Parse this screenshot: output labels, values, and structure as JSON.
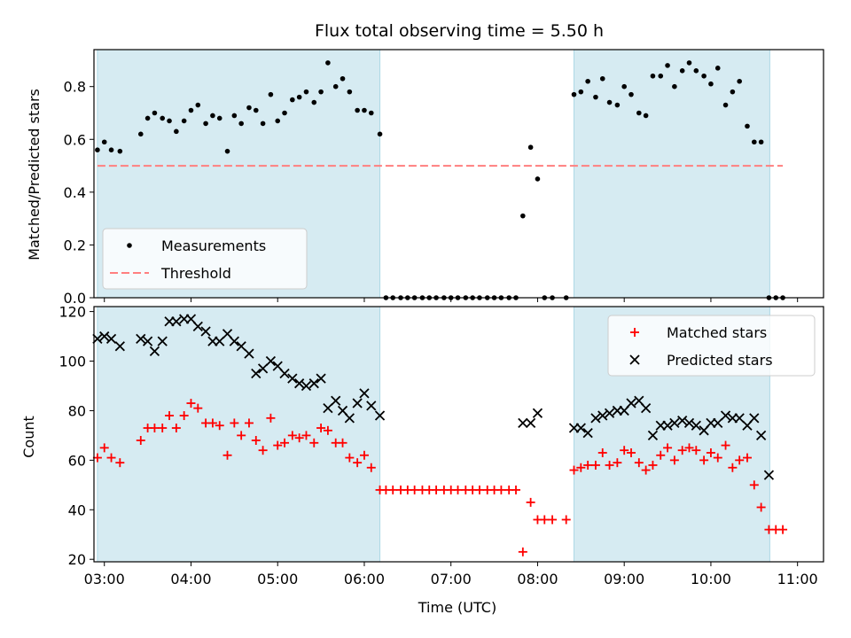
{
  "chart_data": [
    {
      "type": "scatter",
      "title": "Flux total observing time = 5.50 h",
      "ylabel": "Matched/Predicted stars",
      "xlabel": "",
      "xlim": [
        2.88,
        11.3
      ],
      "ylim": [
        0.0,
        0.94
      ],
      "xticks": [
        3,
        4,
        5,
        6,
        7,
        8,
        9,
        10,
        11
      ],
      "xticklabels": [],
      "yticks": [
        0.0,
        0.2,
        0.4,
        0.6,
        0.8
      ],
      "yticklabels": [
        "0.0",
        "0.2",
        "0.4",
        "0.6",
        "0.8"
      ],
      "grid": false,
      "legend_placement": "lower-left",
      "observing_windows": [
        [
          2.92,
          6.18
        ],
        [
          8.42,
          10.68
        ]
      ],
      "window_color": "#add8e6",
      "series": [
        {
          "name": "Measurements",
          "marker": "dot",
          "color": "#000000",
          "x": [
            2.92,
            3.0,
            3.08,
            3.18,
            3.42,
            3.5,
            3.58,
            3.67,
            3.75,
            3.83,
            3.92,
            4.0,
            4.08,
            4.17,
            4.25,
            4.33,
            4.42,
            4.5,
            4.58,
            4.67,
            4.75,
            4.83,
            4.92,
            5.0,
            5.08,
            5.17,
            5.25,
            5.33,
            5.42,
            5.5,
            5.58,
            5.67,
            5.75,
            5.83,
            5.92,
            6.0,
            6.08,
            6.18,
            6.25,
            6.33,
            6.42,
            6.5,
            6.58,
            6.67,
            6.75,
            6.83,
            6.92,
            7.0,
            7.08,
            7.17,
            7.25,
            7.33,
            7.42,
            7.5,
            7.58,
            7.67,
            7.75,
            7.83,
            7.92,
            8.0,
            8.08,
            8.17,
            8.33,
            8.42,
            8.5,
            8.58,
            8.67,
            8.75,
            8.83,
            8.92,
            9.0,
            9.08,
            9.17,
            9.25,
            9.33,
            9.42,
            9.5,
            9.58,
            9.67,
            9.75,
            9.83,
            9.92,
            10.0,
            10.08,
            10.17,
            10.25,
            10.33,
            10.42,
            10.5,
            10.58,
            10.67,
            10.75,
            10.83
          ],
          "y": [
            0.56,
            0.59,
            0.56,
            0.555,
            0.62,
            0.68,
            0.7,
            0.68,
            0.67,
            0.63,
            0.67,
            0.71,
            0.73,
            0.66,
            0.69,
            0.68,
            0.555,
            0.69,
            0.66,
            0.72,
            0.71,
            0.66,
            0.77,
            0.67,
            0.7,
            0.75,
            0.76,
            0.78,
            0.74,
            0.78,
            0.89,
            0.8,
            0.83,
            0.78,
            0.71,
            0.71,
            0.7,
            0.62,
            0.0,
            0.0,
            0.0,
            0.0,
            0.0,
            0.0,
            0.0,
            0.0,
            0.0,
            0.0,
            0.0,
            0.0,
            0.0,
            0.0,
            0.0,
            0.0,
            0.0,
            0.0,
            0.0,
            0.31,
            0.57,
            0.45,
            0.0,
            0.0,
            0.0,
            0.77,
            0.78,
            0.82,
            0.76,
            0.83,
            0.74,
            0.73,
            0.8,
            0.77,
            0.7,
            0.69,
            0.84,
            0.84,
            0.88,
            0.8,
            0.86,
            0.89,
            0.86,
            0.84,
            0.81,
            0.87,
            0.73,
            0.78,
            0.82,
            0.65,
            0.59,
            0.59,
            0.0,
            0.0,
            0.0
          ]
        },
        {
          "name": "Threshold",
          "marker": "dashed-line",
          "color": "#ff7f7f",
          "x": [
            2.92,
            10.83
          ],
          "y": [
            0.5,
            0.5
          ]
        }
      ]
    },
    {
      "type": "scatter",
      "title": "",
      "ylabel": "Count",
      "xlabel": "Time (UTC)",
      "xlim": [
        2.88,
        11.3
      ],
      "ylim": [
        19,
        122
      ],
      "xticks": [
        3,
        4,
        5,
        6,
        7,
        8,
        9,
        10,
        11
      ],
      "xticklabels": [
        "03:00",
        "04:00",
        "05:00",
        "06:00",
        "07:00",
        "08:00",
        "09:00",
        "10:00",
        "11:00"
      ],
      "yticks": [
        20,
        40,
        60,
        80,
        100,
        120
      ],
      "yticklabels": [
        "20",
        "40",
        "60",
        "80",
        "100",
        "120"
      ],
      "grid": false,
      "legend_placement": "upper-right",
      "observing_windows": [
        [
          2.92,
          6.18
        ],
        [
          8.42,
          10.68
        ]
      ],
      "window_color": "#add8e6",
      "series": [
        {
          "name": "Matched stars",
          "marker": "plus",
          "color": "#ff0000",
          "x": [
            2.92,
            3.0,
            3.08,
            3.18,
            3.42,
            3.5,
            3.58,
            3.67,
            3.75,
            3.83,
            3.92,
            4.0,
            4.08,
            4.17,
            4.25,
            4.33,
            4.42,
            4.5,
            4.58,
            4.67,
            4.75,
            4.83,
            4.92,
            5.0,
            5.08,
            5.17,
            5.25,
            5.33,
            5.42,
            5.5,
            5.58,
            5.67,
            5.75,
            5.83,
            5.92,
            6.0,
            6.08,
            6.18,
            6.25,
            6.33,
            6.42,
            6.5,
            6.58,
            6.67,
            6.75,
            6.83,
            6.92,
            7.0,
            7.08,
            7.17,
            7.25,
            7.33,
            7.42,
            7.5,
            7.58,
            7.67,
            7.75,
            7.83,
            7.92,
            8.0,
            8.08,
            8.17,
            8.33,
            8.42,
            8.5,
            8.58,
            8.67,
            8.75,
            8.83,
            8.92,
            9.0,
            9.08,
            9.17,
            9.25,
            9.33,
            9.42,
            9.5,
            9.58,
            9.67,
            9.75,
            9.83,
            9.92,
            10.0,
            10.08,
            10.17,
            10.25,
            10.33,
            10.42,
            10.5,
            10.58,
            10.67,
            10.75,
            10.83
          ],
          "y": [
            61,
            65,
            61,
            59,
            68,
            73,
            73,
            73,
            78,
            73,
            78,
            83,
            81,
            75,
            75,
            74,
            62,
            75,
            70,
            75,
            68,
            64,
            77,
            66,
            67,
            70,
            69,
            70,
            67,
            73,
            72,
            67,
            67,
            61,
            59,
            62,
            57,
            48,
            48,
            48,
            48,
            48,
            48,
            48,
            48,
            48,
            48,
            48,
            48,
            48,
            48,
            48,
            48,
            48,
            48,
            48,
            48,
            23,
            43,
            36,
            36,
            36,
            36,
            56,
            57,
            58,
            58,
            63,
            58,
            59,
            64,
            63,
            59,
            56,
            58,
            62,
            65,
            60,
            64,
            65,
            64,
            60,
            63,
            61,
            66,
            57,
            60,
            61,
            50,
            41,
            32,
            32,
            32
          ]
        },
        {
          "name": "Predicted stars",
          "marker": "x",
          "color": "#000000",
          "x": [
            2.92,
            3.0,
            3.08,
            3.18,
            3.42,
            3.5,
            3.58,
            3.67,
            3.75,
            3.83,
            3.92,
            4.0,
            4.08,
            4.17,
            4.25,
            4.33,
            4.42,
            4.5,
            4.58,
            4.67,
            4.75,
            4.83,
            4.92,
            5.0,
            5.08,
            5.17,
            5.25,
            5.33,
            5.42,
            5.5,
            5.58,
            5.67,
            5.75,
            5.83,
            5.92,
            6.0,
            6.08,
            6.18,
            7.83,
            7.92,
            8.0,
            8.42,
            8.5,
            8.58,
            8.67,
            8.75,
            8.83,
            8.92,
            9.0,
            9.08,
            9.17,
            9.25,
            9.33,
            9.42,
            9.5,
            9.58,
            9.67,
            9.75,
            9.83,
            9.92,
            10.0,
            10.08,
            10.17,
            10.25,
            10.33,
            10.42,
            10.5,
            10.58,
            10.67
          ],
          "y": [
            109,
            110,
            109,
            106,
            109,
            108,
            104,
            108,
            116,
            116,
            117,
            117,
            114,
            112,
            108,
            108,
            111,
            108,
            106,
            103,
            95,
            97,
            100,
            98,
            95,
            93,
            91,
            90,
            91,
            93,
            81,
            84,
            80,
            77,
            83,
            87,
            82,
            78,
            75,
            75,
            79,
            73,
            73,
            71,
            77,
            78,
            79,
            80,
            80,
            83,
            84,
            81,
            70,
            74,
            74,
            75,
            76,
            75,
            74,
            72,
            75,
            75,
            78,
            77,
            77,
            74,
            77,
            70,
            54
          ]
        }
      ]
    }
  ]
}
